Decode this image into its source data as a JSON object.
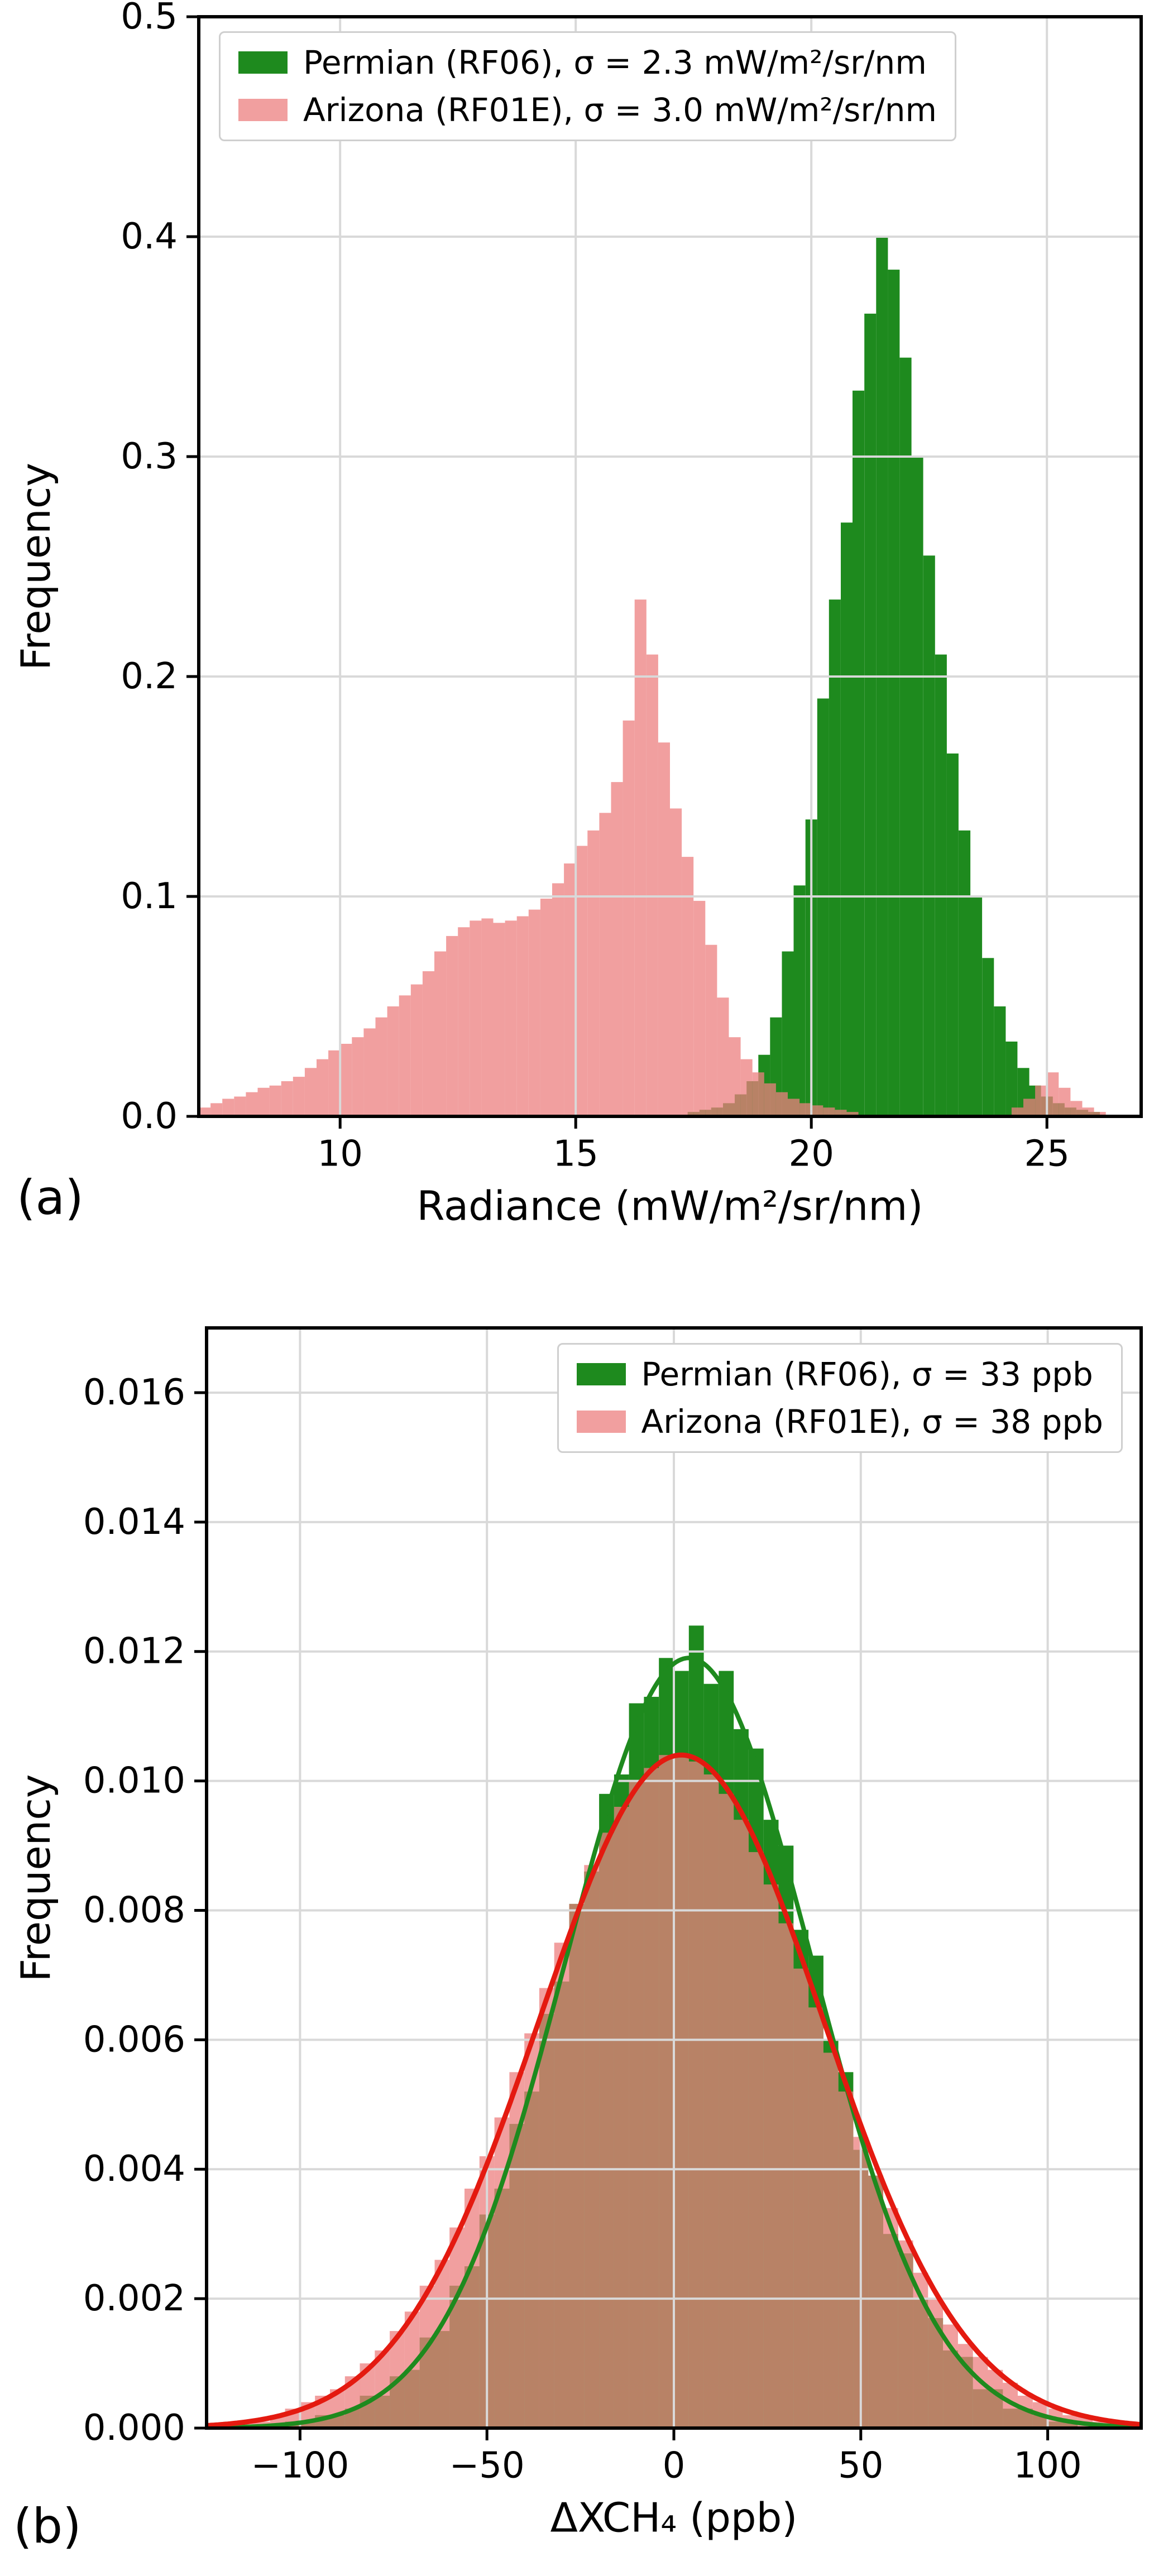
{
  "figure": {
    "background": "#ffffff",
    "panels": [
      {
        "tag": "(a)"
      },
      {
        "tag": "(b)"
      }
    ]
  },
  "chart_data": [
    {
      "id": "a",
      "type": "bar",
      "kind": "overlaid-histograms",
      "title": "",
      "xlabel": "Radiance (mW/m²/sr/nm)",
      "ylabel": "Frequency",
      "xlim": [
        7,
        27
      ],
      "ylim": [
        0,
        0.5
      ],
      "xticks": [
        10,
        15,
        20,
        25
      ],
      "xtick_labels": [
        "10",
        "15",
        "20",
        "25"
      ],
      "yticks": [
        0,
        0.1,
        0.2,
        0.3,
        0.4,
        0.5
      ],
      "ytick_labels": [
        "0.0",
        "0.1",
        "0.2",
        "0.3",
        "0.4",
        "0.5"
      ],
      "grid": true,
      "legend_position": "upper left",
      "series": [
        {
          "name": "Permian (RF06)",
          "label": "Permian (RF06), σ = 2.3 mW/m²/sr/nm",
          "color": "#1e8a1e",
          "alpha": 1.0,
          "bin_width": 0.25,
          "bins": [
            [
              17.5,
              0.002
            ],
            [
              17.75,
              0.003
            ],
            [
              18.0,
              0.004
            ],
            [
              18.25,
              0.006
            ],
            [
              18.5,
              0.01
            ],
            [
              18.75,
              0.016
            ],
            [
              19.0,
              0.028
            ],
            [
              19.25,
              0.045
            ],
            [
              19.5,
              0.075
            ],
            [
              19.75,
              0.105
            ],
            [
              20.0,
              0.135
            ],
            [
              20.25,
              0.19
            ],
            [
              20.5,
              0.235
            ],
            [
              20.75,
              0.27
            ],
            [
              21.0,
              0.33
            ],
            [
              21.25,
              0.365
            ],
            [
              21.5,
              0.4
            ],
            [
              21.75,
              0.385
            ],
            [
              22.0,
              0.345
            ],
            [
              22.25,
              0.3
            ],
            [
              22.5,
              0.255
            ],
            [
              22.75,
              0.21
            ],
            [
              23.0,
              0.165
            ],
            [
              23.25,
              0.13
            ],
            [
              23.5,
              0.1
            ],
            [
              23.75,
              0.072
            ],
            [
              24.0,
              0.05
            ],
            [
              24.25,
              0.034
            ],
            [
              24.5,
              0.022
            ],
            [
              24.75,
              0.014
            ],
            [
              25.0,
              0.009
            ],
            [
              25.25,
              0.006
            ],
            [
              25.5,
              0.004
            ],
            [
              25.75,
              0.003
            ],
            [
              26.0,
              0.002
            ]
          ]
        },
        {
          "name": "Arizona (RF01E)",
          "label": "Arizona (RF01E), σ = 3.0 mW/m²/sr/nm",
          "color": "#ec7f7f",
          "alpha": 0.75,
          "bin_width": 0.25,
          "bins": [
            [
              7.125,
              0.004
            ],
            [
              7.375,
              0.006
            ],
            [
              7.625,
              0.008
            ],
            [
              7.875,
              0.009
            ],
            [
              8.125,
              0.011
            ],
            [
              8.375,
              0.013
            ],
            [
              8.625,
              0.014
            ],
            [
              8.875,
              0.016
            ],
            [
              9.125,
              0.018
            ],
            [
              9.375,
              0.022
            ],
            [
              9.625,
              0.026
            ],
            [
              9.875,
              0.03
            ],
            [
              10.125,
              0.033
            ],
            [
              10.375,
              0.036
            ],
            [
              10.625,
              0.04
            ],
            [
              10.875,
              0.045
            ],
            [
              11.125,
              0.05
            ],
            [
              11.375,
              0.055
            ],
            [
              11.625,
              0.06
            ],
            [
              11.875,
              0.066
            ],
            [
              12.125,
              0.075
            ],
            [
              12.375,
              0.082
            ],
            [
              12.625,
              0.086
            ],
            [
              12.875,
              0.089
            ],
            [
              13.125,
              0.09
            ],
            [
              13.375,
              0.088
            ],
            [
              13.625,
              0.089
            ],
            [
              13.875,
              0.091
            ],
            [
              14.125,
              0.094
            ],
            [
              14.375,
              0.099
            ],
            [
              14.625,
              0.106
            ],
            [
              14.875,
              0.115
            ],
            [
              15.125,
              0.123
            ],
            [
              15.375,
              0.13
            ],
            [
              15.625,
              0.138
            ],
            [
              15.875,
              0.152
            ],
            [
              16.125,
              0.18
            ],
            [
              16.375,
              0.235
            ],
            [
              16.625,
              0.21
            ],
            [
              16.875,
              0.17
            ],
            [
              17.125,
              0.14
            ],
            [
              17.375,
              0.118
            ],
            [
              17.625,
              0.098
            ],
            [
              17.875,
              0.078
            ],
            [
              18.125,
              0.054
            ],
            [
              18.375,
              0.036
            ],
            [
              18.625,
              0.026
            ],
            [
              18.875,
              0.02
            ],
            [
              19.125,
              0.015
            ],
            [
              19.375,
              0.011
            ],
            [
              19.625,
              0.008
            ],
            [
              19.875,
              0.006
            ],
            [
              20.125,
              0.005
            ],
            [
              20.375,
              0.004
            ],
            [
              20.625,
              0.003
            ],
            [
              20.875,
              0.002
            ],
            [
              24.375,
              0.004
            ],
            [
              24.625,
              0.008
            ],
            [
              24.875,
              0.014
            ],
            [
              25.125,
              0.02
            ],
            [
              25.375,
              0.013
            ],
            [
              25.625,
              0.007
            ],
            [
              25.875,
              0.004
            ],
            [
              26.125,
              0.002
            ]
          ]
        }
      ]
    },
    {
      "id": "b",
      "type": "bar",
      "kind": "overlaid-histograms-with-gaussian-fits",
      "title": "",
      "xlabel": "ΔXCH₄ (ppb)",
      "ylabel": "Frequency",
      "xlim": [
        -125,
        125
      ],
      "ylim": [
        0,
        0.017
      ],
      "xticks": [
        -100,
        -50,
        0,
        50,
        100
      ],
      "xtick_labels": [
        "−100",
        "−50",
        "0",
        "50",
        "100"
      ],
      "yticks": [
        0,
        0.002,
        0.004,
        0.006,
        0.008,
        0.01,
        0.012,
        0.014,
        0.016
      ],
      "ytick_labels": [
        "0.000",
        "0.002",
        "0.004",
        "0.006",
        "0.008",
        "0.010",
        "0.012",
        "0.014",
        "0.016"
      ],
      "grid": true,
      "legend_position": "upper right",
      "series": [
        {
          "name": "Permian (RF06)",
          "label": "Permian (RF06), σ = 33 ppb",
          "color": "#1e8a1e",
          "alpha": 1.0,
          "bin_width": 4,
          "bins": [
            [
              -102,
              0.0001
            ],
            [
              -98,
              0.0001
            ],
            [
              -94,
              0.0002
            ],
            [
              -90,
              0.0002
            ],
            [
              -86,
              0.0003
            ],
            [
              -82,
              0.0005
            ],
            [
              -78,
              0.0005
            ],
            [
              -74,
              0.0008
            ],
            [
              -70,
              0.0009
            ],
            [
              -66,
              0.0014
            ],
            [
              -62,
              0.0015
            ],
            [
              -58,
              0.0022
            ],
            [
              -54,
              0.0025
            ],
            [
              -50,
              0.0033
            ],
            [
              -46,
              0.0037
            ],
            [
              -42,
              0.0047
            ],
            [
              -38,
              0.0052
            ],
            [
              -34,
              0.0064
            ],
            [
              -30,
              0.0069
            ],
            [
              -26,
              0.0081
            ],
            [
              -22,
              0.0086
            ],
            [
              -18,
              0.0098
            ],
            [
              -14,
              0.0101
            ],
            [
              -10,
              0.0112
            ],
            [
              -6,
              0.0113
            ],
            [
              -2,
              0.0119
            ],
            [
              2,
              0.0117
            ],
            [
              6,
              0.0124
            ],
            [
              10,
              0.0115
            ],
            [
              14,
              0.0117
            ],
            [
              18,
              0.0108
            ],
            [
              22,
              0.0105
            ],
            [
              26,
              0.0094
            ],
            [
              30,
              0.009
            ],
            [
              34,
              0.0077
            ],
            [
              38,
              0.0073
            ],
            [
              42,
              0.006
            ],
            [
              46,
              0.0055
            ],
            [
              50,
              0.0043
            ],
            [
              54,
              0.0039
            ],
            [
              58,
              0.003
            ],
            [
              62,
              0.0027
            ],
            [
              66,
              0.002
            ],
            [
              70,
              0.0017
            ],
            [
              74,
              0.0012
            ],
            [
              78,
              0.0011
            ],
            [
              82,
              0.0006
            ],
            [
              86,
              0.0006
            ],
            [
              90,
              0.0003
            ],
            [
              94,
              0.0003
            ],
            [
              98,
              0.0002
            ],
            [
              102,
              0.0001
            ],
            [
              106,
              0.0001
            ]
          ]
        },
        {
          "name": "Arizona (RF01E)",
          "label": "Arizona (RF01E), σ = 38 ppb",
          "color": "#ec7f7f",
          "alpha": 0.75,
          "bin_width": 4,
          "bins": [
            [
              -114,
              0.0001
            ],
            [
              -110,
              0.0001
            ],
            [
              -106,
              0.0002
            ],
            [
              -102,
              0.0003
            ],
            [
              -98,
              0.0004
            ],
            [
              -94,
              0.0005
            ],
            [
              -90,
              0.0006
            ],
            [
              -86,
              0.0008
            ],
            [
              -82,
              0.001
            ],
            [
              -78,
              0.0012
            ],
            [
              -74,
              0.0015
            ],
            [
              -70,
              0.0018
            ],
            [
              -66,
              0.0022
            ],
            [
              -62,
              0.0026
            ],
            [
              -58,
              0.0031
            ],
            [
              -54,
              0.0037
            ],
            [
              -50,
              0.0042
            ],
            [
              -46,
              0.0048
            ],
            [
              -42,
              0.0055
            ],
            [
              -38,
              0.0061
            ],
            [
              -34,
              0.0068
            ],
            [
              -30,
              0.0075
            ],
            [
              -26,
              0.0081
            ],
            [
              -22,
              0.0087
            ],
            [
              -18,
              0.0092
            ],
            [
              -14,
              0.0096
            ],
            [
              -10,
              0.01
            ],
            [
              -6,
              0.0102
            ],
            [
              -2,
              0.0104
            ],
            [
              2,
              0.0104
            ],
            [
              6,
              0.0103
            ],
            [
              10,
              0.0101
            ],
            [
              14,
              0.0098
            ],
            [
              18,
              0.0094
            ],
            [
              22,
              0.0089
            ],
            [
              26,
              0.0084
            ],
            [
              30,
              0.0078
            ],
            [
              34,
              0.0071
            ],
            [
              38,
              0.0065
            ],
            [
              42,
              0.0058
            ],
            [
              46,
              0.0052
            ],
            [
              50,
              0.0045
            ],
            [
              54,
              0.0039
            ],
            [
              58,
              0.0034
            ],
            [
              62,
              0.0029
            ],
            [
              66,
              0.0024
            ],
            [
              70,
              0.002
            ],
            [
              74,
              0.0016
            ],
            [
              78,
              0.0013
            ],
            [
              82,
              0.0011
            ],
            [
              86,
              0.0009
            ],
            [
              90,
              0.0007
            ],
            [
              94,
              0.0005
            ],
            [
              98,
              0.0004
            ],
            [
              102,
              0.0003
            ],
            [
              106,
              0.0002
            ],
            [
              110,
              0.0002
            ],
            [
              114,
              0.0001
            ],
            [
              118,
              0.0001
            ]
          ]
        }
      ],
      "curves": [
        {
          "name": "Permian Gaussian fit",
          "color": "#1e8a1e",
          "mu": 4,
          "sigma": 33,
          "peak": 0.0119,
          "width": 8
        },
        {
          "name": "Arizona Gaussian fit",
          "color": "#e41a10",
          "mu": 2,
          "sigma": 38,
          "peak": 0.0104,
          "width": 9
        }
      ]
    }
  ]
}
